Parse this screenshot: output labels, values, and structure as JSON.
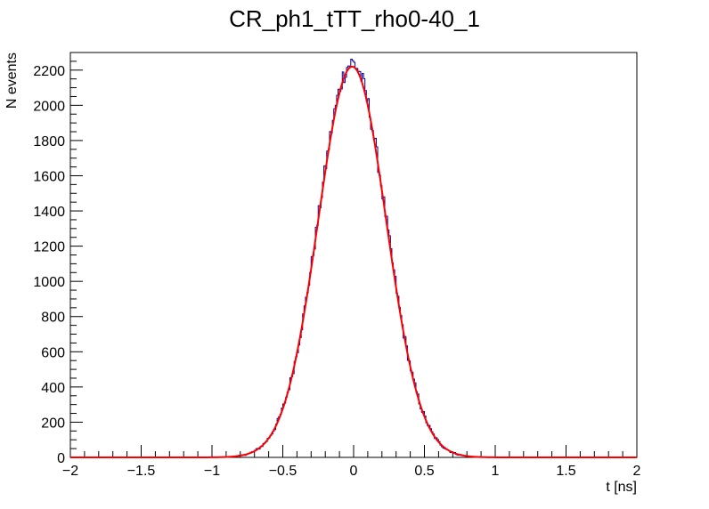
{
  "chart_data": {
    "type": "histogram",
    "title": "CR_ph1_tTT_rho0-40_1",
    "xlabel": "t [ns]",
    "ylabel": "N events",
    "xlim": [
      -2,
      2
    ],
    "ylim": [
      0,
      2300
    ],
    "x_ticks": [
      "-2",
      "-1.5",
      "-1",
      "-0.5",
      "0",
      "0.5",
      "1",
      "1.5",
      "2"
    ],
    "y_ticks": [
      "0",
      "200",
      "400",
      "600",
      "800",
      "1000",
      "1200",
      "1400",
      "1600",
      "1800",
      "2000",
      "2200"
    ],
    "grid": false,
    "legend": "none",
    "series": [
      {
        "kind": "histogram",
        "color": "#000099",
        "bins": 400,
        "bin_width": 0.01,
        "shape": "gaussian",
        "approx_peak": 2240,
        "approx_mean": -0.01,
        "approx_sigma": 0.24
      },
      {
        "kind": "fit",
        "color": "#ff0000",
        "function": "gaussian",
        "amplitude": 2220,
        "mean": -0.01,
        "sigma": 0.24
      }
    ]
  }
}
